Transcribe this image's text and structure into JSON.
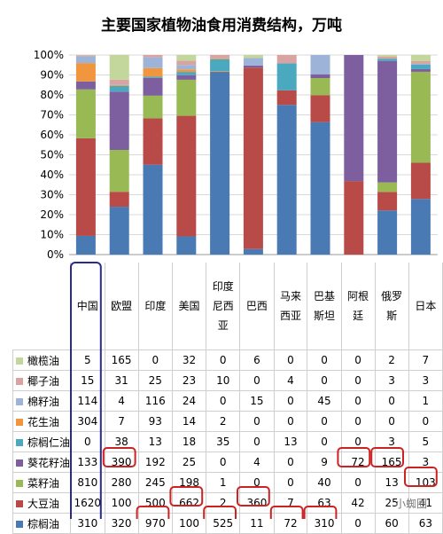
{
  "title": "主要国家植物油食用消费结构，万吨",
  "watermark": "小蜘圈",
  "colors": {
    "棕榈油": "#4a7ab3",
    "大豆油": "#b84a48",
    "菜籽油": "#98b954",
    "葵花籽油": "#7d5f9f",
    "棕榈仁油": "#4aa8bf",
    "花生油": "#f0963e",
    "棉籽油": "#9db4d8",
    "椰子油": "#d9a3a1",
    "橄榄油": "#c3d69b",
    "highlight_blue": "#2a2a8a",
    "highlight_red": "#cc2222"
  },
  "chart_data": {
    "type": "bar",
    "stacked": "percent",
    "title": "主要国家植物油食用消费结构，万吨",
    "categories": [
      "中国",
      "欧盟",
      "印度",
      "美国",
      "印度尼西亚",
      "巴西",
      "马来西亚",
      "巴基斯坦",
      "阿根廷",
      "俄罗斯",
      "日本"
    ],
    "category_labels": [
      [
        "中国"
      ],
      [
        "欧盟"
      ],
      [
        "印度"
      ],
      [
        "美国"
      ],
      [
        "印度",
        "尼西",
        "亚"
      ],
      [
        "巴西"
      ],
      [
        "马来",
        "西亚"
      ],
      [
        "巴基",
        "斯坦"
      ],
      [
        "阿根",
        "廷"
      ],
      [
        "俄罗",
        "斯"
      ],
      [
        "日本"
      ]
    ],
    "y_ticks": [
      "0%",
      "10%",
      "20%",
      "30%",
      "40%",
      "50%",
      "60%",
      "70%",
      "80%",
      "90%",
      "100%"
    ],
    "ylim": [
      0,
      100
    ],
    "grid": true,
    "series": [
      {
        "name": "棕榈油",
        "values": [
          310,
          320,
          970,
          100,
          525,
          11,
          72,
          310,
          0,
          60,
          63
        ]
      },
      {
        "name": "大豆油",
        "values": [
          1620,
          100,
          500,
          662,
          2,
          360,
          7,
          63,
          42,
          25,
          41
        ]
      },
      {
        "name": "菜籽油",
        "values": [
          810,
          280,
          245,
          198,
          1,
          0,
          0,
          40,
          0,
          13,
          103
        ]
      },
      {
        "name": "葵花籽油",
        "values": [
          133,
          390,
          192,
          25,
          0,
          4,
          0,
          9,
          72,
          165,
          3
        ]
      },
      {
        "name": "棕榈仁油",
        "values": [
          0,
          38,
          13,
          18,
          35,
          0,
          13,
          0,
          0,
          3,
          5
        ]
      },
      {
        "name": "花生油",
        "values": [
          304,
          7,
          93,
          14,
          2,
          0,
          0,
          0,
          0,
          0,
          0
        ]
      },
      {
        "name": "棉籽油",
        "values": [
          114,
          4,
          116,
          24,
          0,
          15,
          0,
          45,
          0,
          0,
          1
        ]
      },
      {
        "name": "椰子油",
        "values": [
          15,
          31,
          25,
          23,
          10,
          0,
          4,
          0,
          0,
          3,
          3
        ]
      },
      {
        "name": "橄榄油",
        "values": [
          5,
          165,
          0,
          32,
          0,
          6,
          0,
          0,
          0,
          2,
          7
        ]
      }
    ],
    "table_row_order": [
      "橄榄油",
      "椰子油",
      "棉籽油",
      "花生油",
      "棕榈仁油",
      "葵花籽油",
      "菜籽油",
      "大豆油",
      "棕榈油"
    ],
    "highlighted_country": "中国",
    "highlighted_cells": [
      {
        "series": "葵花籽油",
        "country": "欧盟"
      },
      {
        "series": "葵花籽油",
        "country": "阿根廷"
      },
      {
        "series": "葵花籽油",
        "country": "俄罗斯"
      },
      {
        "series": "菜籽油",
        "country": "日本"
      },
      {
        "series": "大豆油",
        "country": "美国"
      },
      {
        "series": "大豆油",
        "country": "巴西"
      },
      {
        "series": "棕榈油",
        "country": "印度"
      },
      {
        "series": "棕榈油",
        "country": "印度尼西亚"
      },
      {
        "series": "棕榈油",
        "country": "马来西亚"
      },
      {
        "series": "棕榈油",
        "country": "巴基斯坦"
      }
    ]
  }
}
